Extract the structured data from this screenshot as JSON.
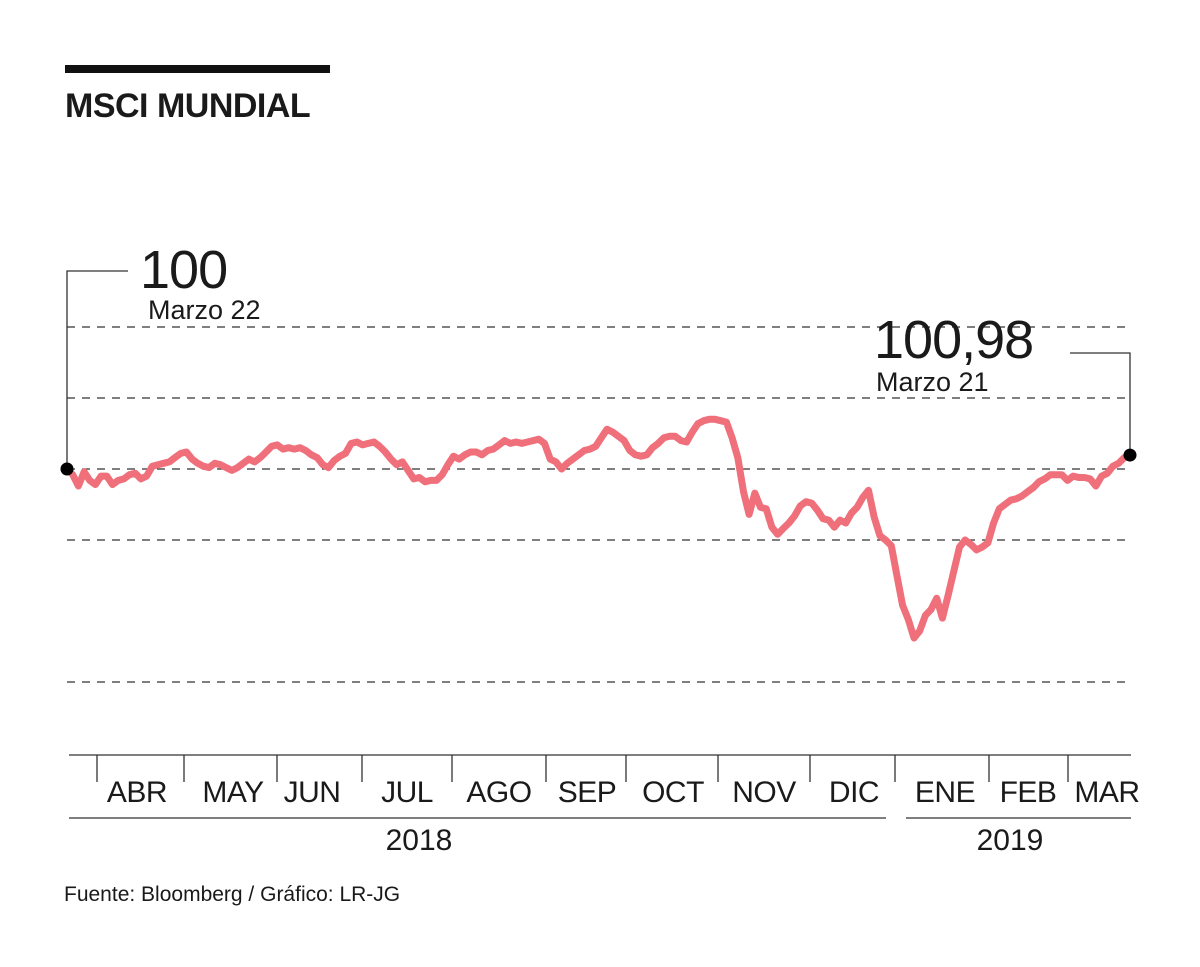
{
  "chart_data": {
    "type": "line",
    "title": "MSCI MUNDIAL",
    "source": "Fuente: Bloomberg / Gráfico: LR-JG",
    "months": [
      "ABR",
      "MAY",
      "JUN",
      "JUL",
      "AGO",
      "SEP",
      "OCT",
      "NOV",
      "DIC",
      "ENE",
      "FEB",
      "MAR"
    ],
    "years": [
      "2018",
      "2019"
    ],
    "start_annotation": {
      "value_label": "100",
      "date_label": "Marzo 22",
      "value": 100
    },
    "end_annotation": {
      "value_label": "100,98",
      "date_label": "Marzo 21",
      "value": 100.98
    },
    "ylim": [
      84,
      111
    ],
    "gridlines": [
      85,
      95,
      105,
      110
    ],
    "grid": true,
    "series": [
      {
        "color": "#ef6f7a",
        "x_start": "2018-03-22",
        "x_end": "2019-03-21",
        "values": [
          100,
          99.6,
          98.8,
          99.8,
          99.2,
          98.9,
          99.5,
          99.5,
          98.9,
          99.2,
          99.3,
          99.6,
          99.7,
          99.3,
          99.5,
          100.2,
          100.3,
          100.4,
          100.5,
          100.8,
          101.1,
          101.2,
          100.7,
          100.4,
          100.2,
          100.1,
          100.4,
          100.3,
          100.1,
          99.9,
          100.1,
          100.4,
          100.7,
          100.5,
          100.8,
          101.2,
          101.6,
          101.7,
          101.4,
          101.5,
          101.4,
          101.5,
          101.3,
          101.0,
          100.8,
          100.3,
          100.1,
          100.6,
          100.9,
          101.1,
          101.8,
          101.9,
          101.7,
          101.8,
          101.9,
          101.6,
          101.2,
          100.7,
          100.3,
          100.5,
          99.9,
          99.3,
          99.4,
          99.1,
          99.2,
          99.2,
          99.6,
          100.3,
          100.9,
          100.7,
          101.0,
          101.2,
          101.2,
          101.0,
          101.3,
          101.4,
          101.7,
          102.0,
          101.8,
          101.9,
          101.8,
          101.9,
          102.0,
          102.1,
          101.8,
          100.7,
          100.5,
          100.0,
          100.4,
          100.7,
          101.0,
          101.3,
          101.4,
          101.6,
          102.2,
          102.8,
          102.6,
          102.3,
          102.0,
          101.3,
          101.0,
          100.9,
          101.0,
          101.5,
          101.8,
          102.2,
          102.3,
          102.3,
          102.0,
          101.9,
          102.6,
          103.2,
          103.4,
          103.5,
          103.5,
          103.4,
          103.3,
          102.2,
          100.8,
          98.4,
          96.8,
          98.3,
          97.3,
          97.2,
          95.9,
          95.4,
          95.8,
          96.2,
          96.7,
          97.4,
          97.7,
          97.6,
          97.1,
          96.5,
          96.4,
          95.9,
          96.4,
          96.2,
          96.9,
          97.3,
          98.0,
          98.5,
          96.6,
          95.3,
          95.0,
          94.6,
          92.5,
          90.4,
          89.4,
          88.1,
          88.6,
          89.7,
          90.1,
          90.9,
          89.5,
          91.1,
          92.8,
          94.5,
          95.0,
          94.7,
          94.3,
          94.5,
          94.8,
          96.2,
          97.2,
          97.5,
          97.8,
          97.9,
          98.1,
          98.4,
          98.7,
          99.1,
          99.3,
          99.6,
          99.6,
          99.6,
          99.2,
          99.5,
          99.4,
          99.4,
          99.3,
          98.8,
          99.5,
          99.7,
          100.2,
          100.4,
          100.8,
          101.0
        ]
      }
    ]
  }
}
